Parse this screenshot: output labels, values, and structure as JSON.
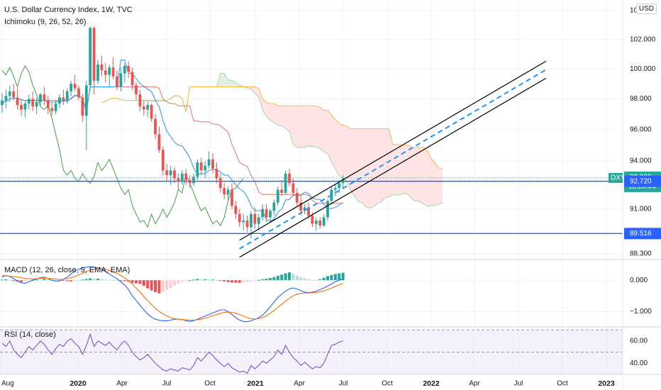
{
  "header": {
    "title": "U.S. Dollar Currency Index, 1W, TVC",
    "indicator": "Ichimoku (9, 26, 52, 26)",
    "currency_button": "USD"
  },
  "colors": {
    "up": "#26a69a",
    "down": "#ef5350",
    "grid": "#f0f3fa",
    "axis_text": "#131722",
    "channel": "#000000",
    "channel_mid": "#2196f3",
    "hline": "#2962ff",
    "tenkan": "#2196f3",
    "kijun": "#e57373",
    "chikou": "#43a047",
    "span_a": "#a5d6a7",
    "span_b": "#ffb74d",
    "macd": "#2962ff",
    "signal": "#ff6d00",
    "rsi": "#7e57c2"
  },
  "chart_data": [
    {
      "type": "candlestick",
      "title": "U.S. Dollar Currency Index, 1W, TVC",
      "x_axis_ticks": [
        "Aug",
        "2020",
        "Apr",
        "Jul",
        "Oct",
        "2021",
        "Apr",
        "Jul",
        "Oct",
        "2022",
        "Apr",
        "Jul",
        "Oct",
        "2023"
      ],
      "y_axis_ticks": [
        "104.000",
        "102.000",
        "100.000",
        "98.000",
        "96.000",
        "94.000",
        "91.000",
        "88.300"
      ],
      "ylim": [
        88.3,
        104.0
      ],
      "y_scale": "log",
      "price_labels": [
        {
          "label": "DXY",
          "value": "92.930",
          "sub": "12:23:53",
          "kind": "last"
        },
        {
          "label": "",
          "value": "92.720",
          "kind": "hline"
        },
        {
          "label": "",
          "value": "89.516",
          "kind": "hline"
        }
      ],
      "candles": [
        [
          97.6,
          98.4,
          97.1,
          97.9
        ],
        [
          97.9,
          98.6,
          97.4,
          98.2
        ],
        [
          98.2,
          98.9,
          97.8,
          98.5
        ],
        [
          98.5,
          99.0,
          97.9,
          98.1
        ],
        [
          98.1,
          98.7,
          97.3,
          97.6
        ],
        [
          97.6,
          98.0,
          96.9,
          97.3
        ],
        [
          97.3,
          97.9,
          96.8,
          97.7
        ],
        [
          97.7,
          98.3,
          97.3,
          98.0
        ],
        [
          98.0,
          98.5,
          97.2,
          97.5
        ],
        [
          97.5,
          98.1,
          97.0,
          97.8
        ],
        [
          97.8,
          98.4,
          97.5,
          98.3
        ],
        [
          98.3,
          98.8,
          97.6,
          97.9
        ],
        [
          97.9,
          98.2,
          97.0,
          97.4
        ],
        [
          97.4,
          97.8,
          96.9,
          97.2
        ],
        [
          97.2,
          97.9,
          97.0,
          97.7
        ],
        [
          97.7,
          98.3,
          97.4,
          98.1
        ],
        [
          98.1,
          98.6,
          97.6,
          97.9
        ],
        [
          97.9,
          98.7,
          97.7,
          98.5
        ],
        [
          98.5,
          99.2,
          98.2,
          99.0
        ],
        [
          99.0,
          99.6,
          98.5,
          98.7
        ],
        [
          98.7,
          98.9,
          97.9,
          98.1
        ],
        [
          98.1,
          98.3,
          96.5,
          96.9
        ],
        [
          96.9,
          99.2,
          94.7,
          98.9
        ],
        [
          98.9,
          102.9,
          98.6,
          102.8
        ],
        [
          102.8,
          102.9,
          98.3,
          99.2
        ],
        [
          99.2,
          100.6,
          99.0,
          100.3
        ],
        [
          100.3,
          100.9,
          99.5,
          99.9
        ],
        [
          99.9,
          100.4,
          99.1,
          99.6
        ],
        [
          99.6,
          100.3,
          98.8,
          100.1
        ],
        [
          100.1,
          100.8,
          99.3,
          99.5
        ],
        [
          99.5,
          99.9,
          98.6,
          98.8
        ],
        [
          98.8,
          100.1,
          98.5,
          99.7
        ],
        [
          99.7,
          100.4,
          99.1,
          100.2
        ],
        [
          100.2,
          100.5,
          99.4,
          99.8
        ],
        [
          99.8,
          100.1,
          98.6,
          98.9
        ],
        [
          98.9,
          99.1,
          97.9,
          98.3
        ],
        [
          98.3,
          98.6,
          97.2,
          97.5
        ],
        [
          97.5,
          97.9,
          96.9,
          97.3
        ],
        [
          97.3,
          97.8,
          96.8,
          97.6
        ],
        [
          97.6,
          97.7,
          96.5,
          96.7
        ],
        [
          96.7,
          97.0,
          95.4,
          95.7
        ],
        [
          95.7,
          96.2,
          94.5,
          94.7
        ],
        [
          94.7,
          94.9,
          93.1,
          93.4
        ],
        [
          93.4,
          93.8,
          92.7,
          93.1
        ],
        [
          93.1,
          93.7,
          92.5,
          93.4
        ],
        [
          93.4,
          93.6,
          92.6,
          92.9
        ],
        [
          92.9,
          93.2,
          92.2,
          92.7
        ],
        [
          92.7,
          93.4,
          92.5,
          93.2
        ],
        [
          93.2,
          93.5,
          92.5,
          92.8
        ],
        [
          92.8,
          93.1,
          92.3,
          92.6
        ],
        [
          92.6,
          93.2,
          92.4,
          93.0
        ],
        [
          93.0,
          94.1,
          92.8,
          93.9
        ],
        [
          93.9,
          94.2,
          93.1,
          93.4
        ],
        [
          93.4,
          94.0,
          92.9,
          93.7
        ],
        [
          93.7,
          94.6,
          93.5,
          94.1
        ],
        [
          94.1,
          94.5,
          93.2,
          93.5
        ],
        [
          93.5,
          93.9,
          92.6,
          92.9
        ],
        [
          92.9,
          93.2,
          92.0,
          92.3
        ],
        [
          92.3,
          92.6,
          91.6,
          91.9
        ],
        [
          91.9,
          92.4,
          91.6,
          92.2
        ],
        [
          92.2,
          92.6,
          91.0,
          91.2
        ],
        [
          91.2,
          91.5,
          90.4,
          90.7
        ],
        [
          90.7,
          91.0,
          89.9,
          90.2
        ],
        [
          90.2,
          90.7,
          89.7,
          90.3
        ],
        [
          90.3,
          90.6,
          89.6,
          89.9
        ],
        [
          89.9,
          90.9,
          89.2,
          90.7
        ],
        [
          90.7,
          91.1,
          89.8,
          90.1
        ],
        [
          90.1,
          90.7,
          89.7,
          90.5
        ],
        [
          90.5,
          91.3,
          90.3,
          91.0
        ],
        [
          91.0,
          91.3,
          90.2,
          90.5
        ],
        [
          90.5,
          91.0,
          90.2,
          90.9
        ],
        [
          90.9,
          91.6,
          90.6,
          91.4
        ],
        [
          91.4,
          92.4,
          91.2,
          92.2
        ],
        [
          92.2,
          92.8,
          91.8,
          92.0
        ],
        [
          92.0,
          93.4,
          91.9,
          93.2
        ],
        [
          93.2,
          93.5,
          92.4,
          92.6
        ],
        [
          92.6,
          92.9,
          91.8,
          92.0
        ],
        [
          92.0,
          92.3,
          91.2,
          91.4
        ],
        [
          91.4,
          91.8,
          90.6,
          90.9
        ],
        [
          90.9,
          91.3,
          90.7,
          91.1
        ],
        [
          91.1,
          91.4,
          90.4,
          90.6
        ],
        [
          90.6,
          90.8,
          89.9,
          90.1
        ],
        [
          90.1,
          90.5,
          89.7,
          90.3
        ],
        [
          90.3,
          90.5,
          89.8,
          90.0
        ],
        [
          90.0,
          90.7,
          89.9,
          90.5
        ],
        [
          90.5,
          91.6,
          90.3,
          91.5
        ],
        [
          91.5,
          92.4,
          91.3,
          92.2
        ],
        [
          92.2,
          92.5,
          91.8,
          92.3
        ],
        [
          92.3,
          92.8,
          92.0,
          92.6
        ],
        [
          92.6,
          93.1,
          92.3,
          92.9
        ]
      ],
      "labels": [
        "DXY"
      ]
    },
    {
      "type": "bar",
      "title": "MACD (12, 26, close, 9, EMA, EMA)",
      "y_axis_ticks": [
        "0.000",
        "−1.000"
      ],
      "ylim": [
        -1.45,
        0.55
      ],
      "histogram": [
        0.02,
        0.03,
        0.01,
        -0.02,
        -0.04,
        -0.05,
        -0.03,
        -0.02,
        0.01,
        0.03,
        0.02,
        0.04,
        0.03,
        0.02,
        0.01,
        -0.01,
        -0.02,
        -0.03,
        -0.04,
        -0.02,
        -0.01,
        0.02,
        0.04,
        0.06,
        0.05,
        0.05,
        0.04,
        0.03,
        0.02,
        0.01,
        0.0,
        -0.01,
        -0.03,
        -0.05,
        -0.08,
        -0.1,
        -0.12,
        -0.18,
        -0.26,
        -0.33,
        -0.38,
        -0.42,
        -0.38,
        -0.32,
        -0.25,
        -0.17,
        -0.1,
        -0.05,
        -0.02,
        0.0,
        0.02,
        0.04,
        0.03,
        0.03,
        0.02,
        0.02,
        0.0,
        -0.02,
        -0.04,
        -0.06,
        -0.07,
        -0.08,
        -0.08,
        -0.07,
        -0.06,
        -0.04,
        -0.02,
        0.01,
        0.03,
        0.05,
        0.07,
        0.1,
        0.14,
        0.18,
        0.22,
        0.25,
        0.21,
        0.15,
        0.1,
        0.06,
        0.03,
        0.01,
        0.0,
        0.03,
        0.08,
        0.13,
        0.17,
        0.2,
        0.22,
        0.24
      ],
      "macd": [
        0.1,
        0.15,
        0.12,
        0.05,
        -0.02,
        -0.08,
        -0.1,
        -0.05,
        0.0,
        0.05,
        0.08,
        0.1,
        0.05,
        0.0,
        -0.03,
        -0.02,
        0.03,
        0.1,
        0.2,
        0.3,
        0.35,
        0.4,
        0.42,
        0.43,
        0.42,
        0.4,
        0.35,
        0.28,
        0.2,
        0.12,
        0.05,
        -0.05,
        -0.15,
        -0.3,
        -0.5,
        -0.65,
        -0.8,
        -0.95,
        -1.08,
        -1.18,
        -1.25,
        -1.28,
        -1.3,
        -1.3,
        -1.28,
        -1.25,
        -1.25,
        -1.26,
        -1.3,
        -1.32,
        -1.3,
        -1.25,
        -1.2,
        -1.15,
        -1.1,
        -1.05,
        -1.0,
        -0.95,
        -0.95,
        -1.0,
        -1.1,
        -1.2,
        -1.28,
        -1.32,
        -1.33,
        -1.3,
        -1.25,
        -1.2,
        -1.12,
        -1.0,
        -0.85,
        -0.7,
        -0.55,
        -0.45,
        -0.35,
        -0.28,
        -0.25,
        -0.28,
        -0.33,
        -0.38,
        -0.4,
        -0.38,
        -0.35,
        -0.3,
        -0.25,
        -0.18,
        -0.12,
        -0.05,
        0.0,
        0.05
      ],
      "signal": [
        0.15,
        0.14,
        0.13,
        0.12,
        0.1,
        0.08,
        0.06,
        0.05,
        0.04,
        0.05,
        0.06,
        0.07,
        0.06,
        0.05,
        0.04,
        0.03,
        0.03,
        0.05,
        0.08,
        0.12,
        0.17,
        0.22,
        0.28,
        0.32,
        0.35,
        0.37,
        0.37,
        0.35,
        0.32,
        0.27,
        0.22,
        0.15,
        0.08,
        -0.02,
        -0.12,
        -0.25,
        -0.38,
        -0.52,
        -0.65,
        -0.78,
        -0.9,
        -1.0,
        -1.08,
        -1.15,
        -1.2,
        -1.23,
        -1.25,
        -1.26,
        -1.27,
        -1.28,
        -1.28,
        -1.27,
        -1.25,
        -1.22,
        -1.18,
        -1.14,
        -1.1,
        -1.06,
        -1.03,
        -1.02,
        -1.03,
        -1.06,
        -1.1,
        -1.15,
        -1.2,
        -1.23,
        -1.24,
        -1.23,
        -1.2,
        -1.14,
        -1.06,
        -0.97,
        -0.87,
        -0.77,
        -0.67,
        -0.58,
        -0.5,
        -0.45,
        -0.42,
        -0.41,
        -0.41,
        -0.4,
        -0.39,
        -0.37,
        -0.34,
        -0.3,
        -0.25,
        -0.2,
        -0.15,
        -0.1
      ]
    },
    {
      "type": "line",
      "title": "RSI (14, close)",
      "y_axis_ticks": [
        "60.00",
        "40.00"
      ],
      "ylim": [
        30,
        72
      ],
      "bands": [
        70,
        50,
        30
      ],
      "rsi": [
        58,
        55,
        60,
        52,
        48,
        45,
        50,
        55,
        52,
        56,
        60,
        57,
        52,
        48,
        53,
        57,
        55,
        60,
        62,
        58,
        55,
        48,
        56,
        66,
        55,
        60,
        58,
        56,
        59,
        55,
        52,
        57,
        60,
        56,
        50,
        46,
        43,
        45,
        48,
        44,
        40,
        37,
        34,
        33,
        35,
        34,
        33,
        36,
        35,
        34,
        38,
        45,
        42,
        46,
        50,
        47,
        43,
        40,
        37,
        40,
        36,
        34,
        32,
        33,
        31,
        38,
        35,
        38,
        42,
        40,
        43,
        46,
        52,
        48,
        56,
        50,
        45,
        42,
        38,
        41,
        38,
        35,
        37,
        36,
        40,
        48,
        56,
        57,
        59,
        60
      ]
    }
  ]
}
